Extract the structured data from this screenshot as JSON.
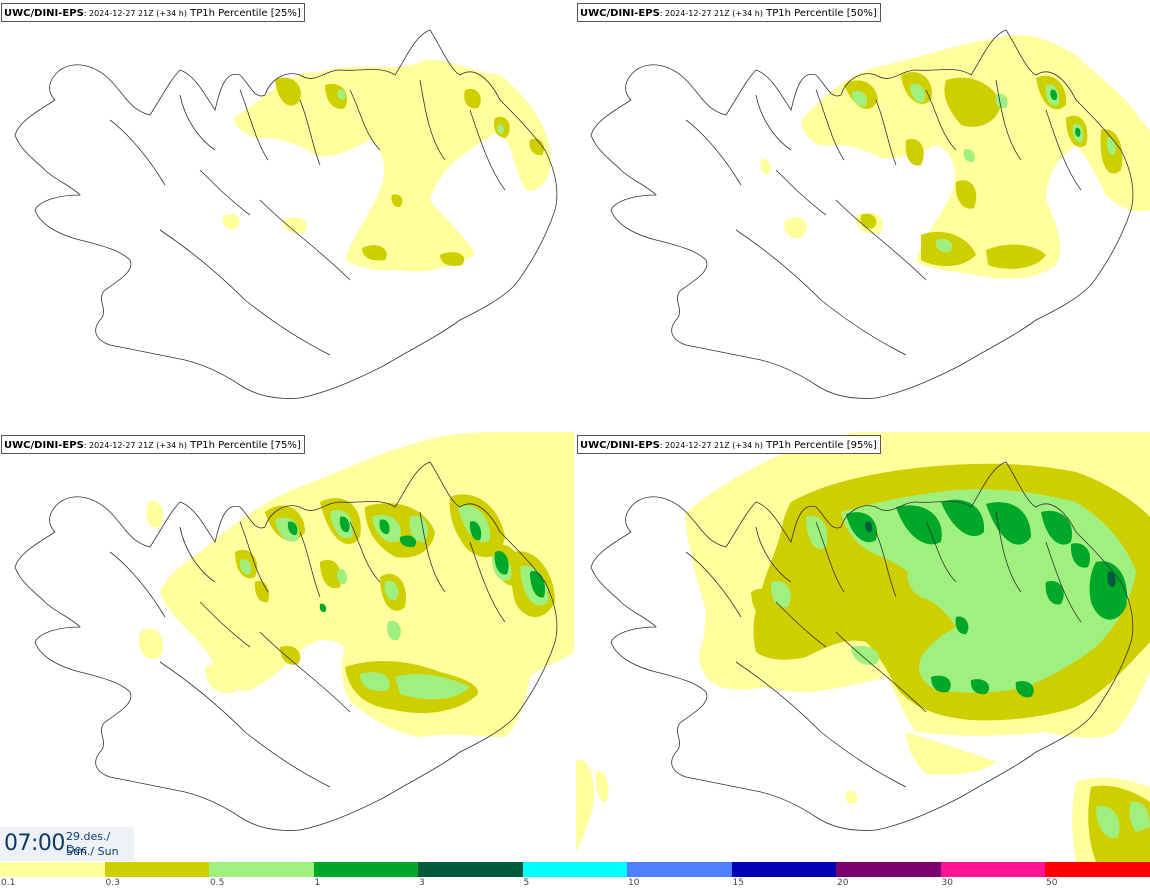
{
  "panels": [
    {
      "model": "UWC/DINI-EPS",
      "run": ": 2024-12-27 21Z (+34 h)",
      "variable": " TP1h Percentile [25%]"
    },
    {
      "model": "UWC/DINI-EPS",
      "run": ": 2024-12-27 21Z (+34 h)",
      "variable": " TP1h Percentile [50%]"
    },
    {
      "model": "UWC/DINI-EPS",
      "run": ": 2024-12-27 21Z (+34 h)",
      "variable": " TP1h Percentile [75%]"
    },
    {
      "model": "UWC/DINI-EPS",
      "run": ": 2024-12-27 21Z (+34 h)",
      "variable": " TP1h Percentile [95%]"
    }
  ],
  "valid_time": {
    "time": "07:00",
    "date_line1": "29.des./ Dec",
    "date_line2": "Sun./ Sun"
  },
  "colorbar": {
    "labels": [
      "0.1",
      "0.3",
      "0.5",
      "1",
      "3",
      "5",
      "10",
      "15",
      "20",
      "30",
      "50"
    ],
    "colors": [
      "#ffff9e",
      "#cfcf00",
      "#a0f080",
      "#00a82a",
      "#005a3c",
      "#00ffff",
      "#4d7fff",
      "#0000b4",
      "#7b0070",
      "#ff1493",
      "#ff0000"
    ]
  },
  "legend_colors": {
    "light_yellow": "#ffff9e",
    "olive": "#cfcf00",
    "light_green": "#a0f080",
    "green": "#00a82a",
    "dark_green": "#005a3c"
  }
}
